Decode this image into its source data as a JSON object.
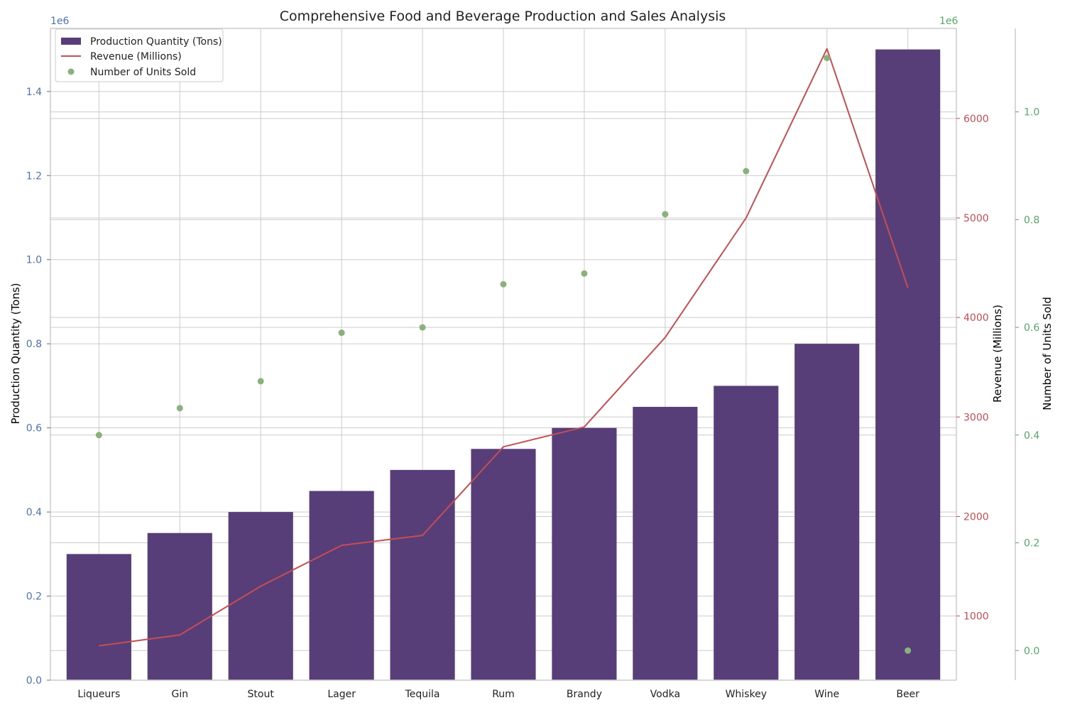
{
  "chart_data": {
    "type": "bar",
    "title": "Comprehensive Food and Beverage Production and Sales Analysis",
    "categories": [
      "Liqueurs",
      "Gin",
      "Stout",
      "Lager",
      "Tequila",
      "Rum",
      "Brandy",
      "Vodka",
      "Whiskey",
      "Wine",
      "Beer"
    ],
    "series": [
      {
        "name": "Production Quantity (Tons)",
        "kind": "bar",
        "axis": "left",
        "color": "#583e79",
        "values": [
          300000,
          350000,
          400000,
          450000,
          500000,
          550000,
          600000,
          650000,
          700000,
          800000,
          1500000
        ]
      },
      {
        "name": "Revenue (Millions)",
        "kind": "line",
        "axis": "right",
        "color": "#c44e52",
        "values": [
          700,
          810,
          1300,
          1710,
          1810,
          2700,
          2900,
          3800,
          5000,
          6700,
          4300
        ]
      },
      {
        "name": "Number of Units Sold",
        "kind": "scatter",
        "axis": "far-right",
        "color": "#8ab17d",
        "values": [
          400000,
          450000,
          500000,
          590000,
          600000,
          680000,
          700000,
          810000,
          890000,
          1100000,
          0
        ]
      }
    ],
    "axes": {
      "left": {
        "label": "Production Quantity (Tons)",
        "label_color": "#59b53a",
        "tick_color": "#4c72b0",
        "range": [
          0,
          1.55
        ],
        "ticks": [
          "0.0",
          "0.2",
          "0.4",
          "0.6",
          "0.8",
          "1.0",
          "1.2",
          "1.4"
        ],
        "offset_text": "1e6"
      },
      "right": {
        "label": "Revenue (Millions)",
        "label_color": "#7fa8d8",
        "tick_color": "#c44e52",
        "range": [
          355,
          6905
        ],
        "ticks": [
          "1000",
          "2000",
          "3000",
          "4000",
          "5000",
          "6000"
        ],
        "offset_text": "1e6"
      },
      "far_right": {
        "label": "Number of Units Sold",
        "label_color": "#e8a26a",
        "tick_color": "#55a868",
        "range": [
          -0.055,
          1.155
        ],
        "ticks": [
          "0.0",
          "0.2",
          "0.4",
          "0.6",
          "0.8",
          "1.0"
        ]
      }
    },
    "grid": true,
    "legend_position": "top-left"
  }
}
